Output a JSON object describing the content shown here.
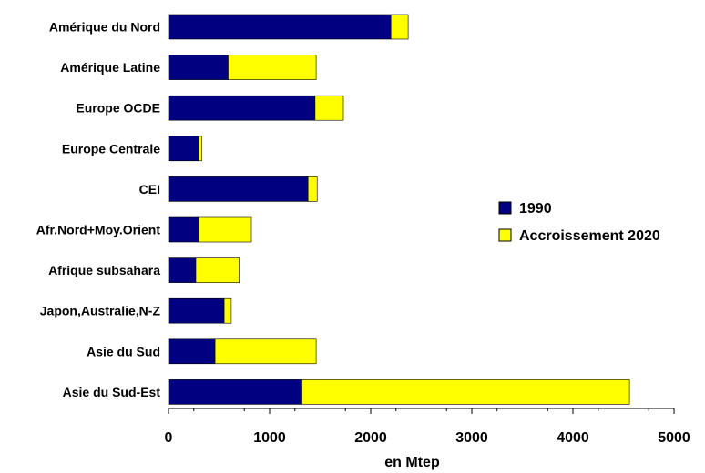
{
  "chart_data": {
    "type": "bar",
    "orientation": "horizontal",
    "stacked": true,
    "categories": [
      "Amérique du Nord",
      "Amérique Latine",
      "Europe OCDE",
      "Europe Centrale",
      "CEI",
      "Afr.Nord+Moy.Orient",
      "Afrique subsahara",
      "Japon,Australie,N-Z",
      "Asie du Sud",
      "Asie du Sud-Est"
    ],
    "series": [
      {
        "name": "1990",
        "color": "#000080",
        "values": [
          2200,
          590,
          1450,
          300,
          1380,
          300,
          270,
          550,
          460,
          1320
        ]
      },
      {
        "name": "Accroissement 2020",
        "color": "#FFFF00",
        "values": [
          170,
          870,
          280,
          30,
          90,
          520,
          430,
          70,
          1000,
          3240
        ]
      }
    ],
    "xlabel": "en Mtep",
    "xlim": [
      0,
      5000
    ],
    "xticks": [
      0,
      1000,
      2000,
      3000,
      4000,
      5000
    ],
    "legend_position": "right",
    "grid": false
  }
}
